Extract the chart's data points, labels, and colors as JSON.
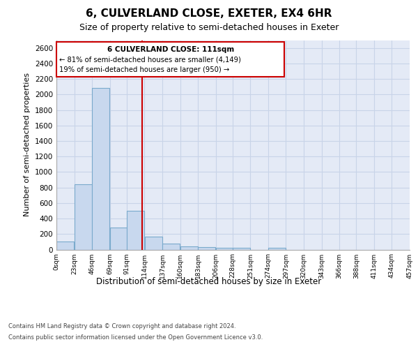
{
  "title": "6, CULVERLAND CLOSE, EXETER, EX4 6HR",
  "subtitle": "Size of property relative to semi-detached houses in Exeter",
  "xlabel": "Distribution of semi-detached houses by size in Exeter",
  "ylabel": "Number of semi-detached properties",
  "annotation_title": "6 CULVERLAND CLOSE: 111sqm",
  "annotation_line1": "← 81% of semi-detached houses are smaller (4,149)",
  "annotation_line2": "19% of semi-detached houses are larger (950) →",
  "footer1": "Contains HM Land Registry data © Crown copyright and database right 2024.",
  "footer2": "Contains public sector information licensed under the Open Government Licence v3.0.",
  "property_size": 111,
  "bin_edges": [
    0,
    23,
    46,
    69,
    91,
    114,
    137,
    160,
    183,
    206,
    228,
    251,
    274,
    297,
    320,
    343,
    366,
    388,
    411,
    434,
    457
  ],
  "bar_heights": [
    100,
    840,
    2080,
    280,
    500,
    165,
    75,
    40,
    30,
    20,
    20,
    0,
    20,
    0,
    0,
    0,
    0,
    0,
    0,
    0
  ],
  "bar_color": "#c8d8ee",
  "bar_edge_color": "#7aaacc",
  "vline_color": "#cc0000",
  "vline_x": 111,
  "ylim": [
    0,
    2700
  ],
  "xlim": [
    0,
    457
  ],
  "grid_color": "#c8d4e8",
  "bg_color": "#e4eaf6",
  "box_edge_color": "#cc0000",
  "tick_labels": [
    "0sqm",
    "23sqm",
    "46sqm",
    "69sqm",
    "91sqm",
    "114sqm",
    "137sqm",
    "160sqm",
    "183sqm",
    "206sqm",
    "228sqm",
    "251sqm",
    "274sqm",
    "297sqm",
    "320sqm",
    "343sqm",
    "366sqm",
    "388sqm",
    "411sqm",
    "434sqm",
    "457sqm"
  ]
}
